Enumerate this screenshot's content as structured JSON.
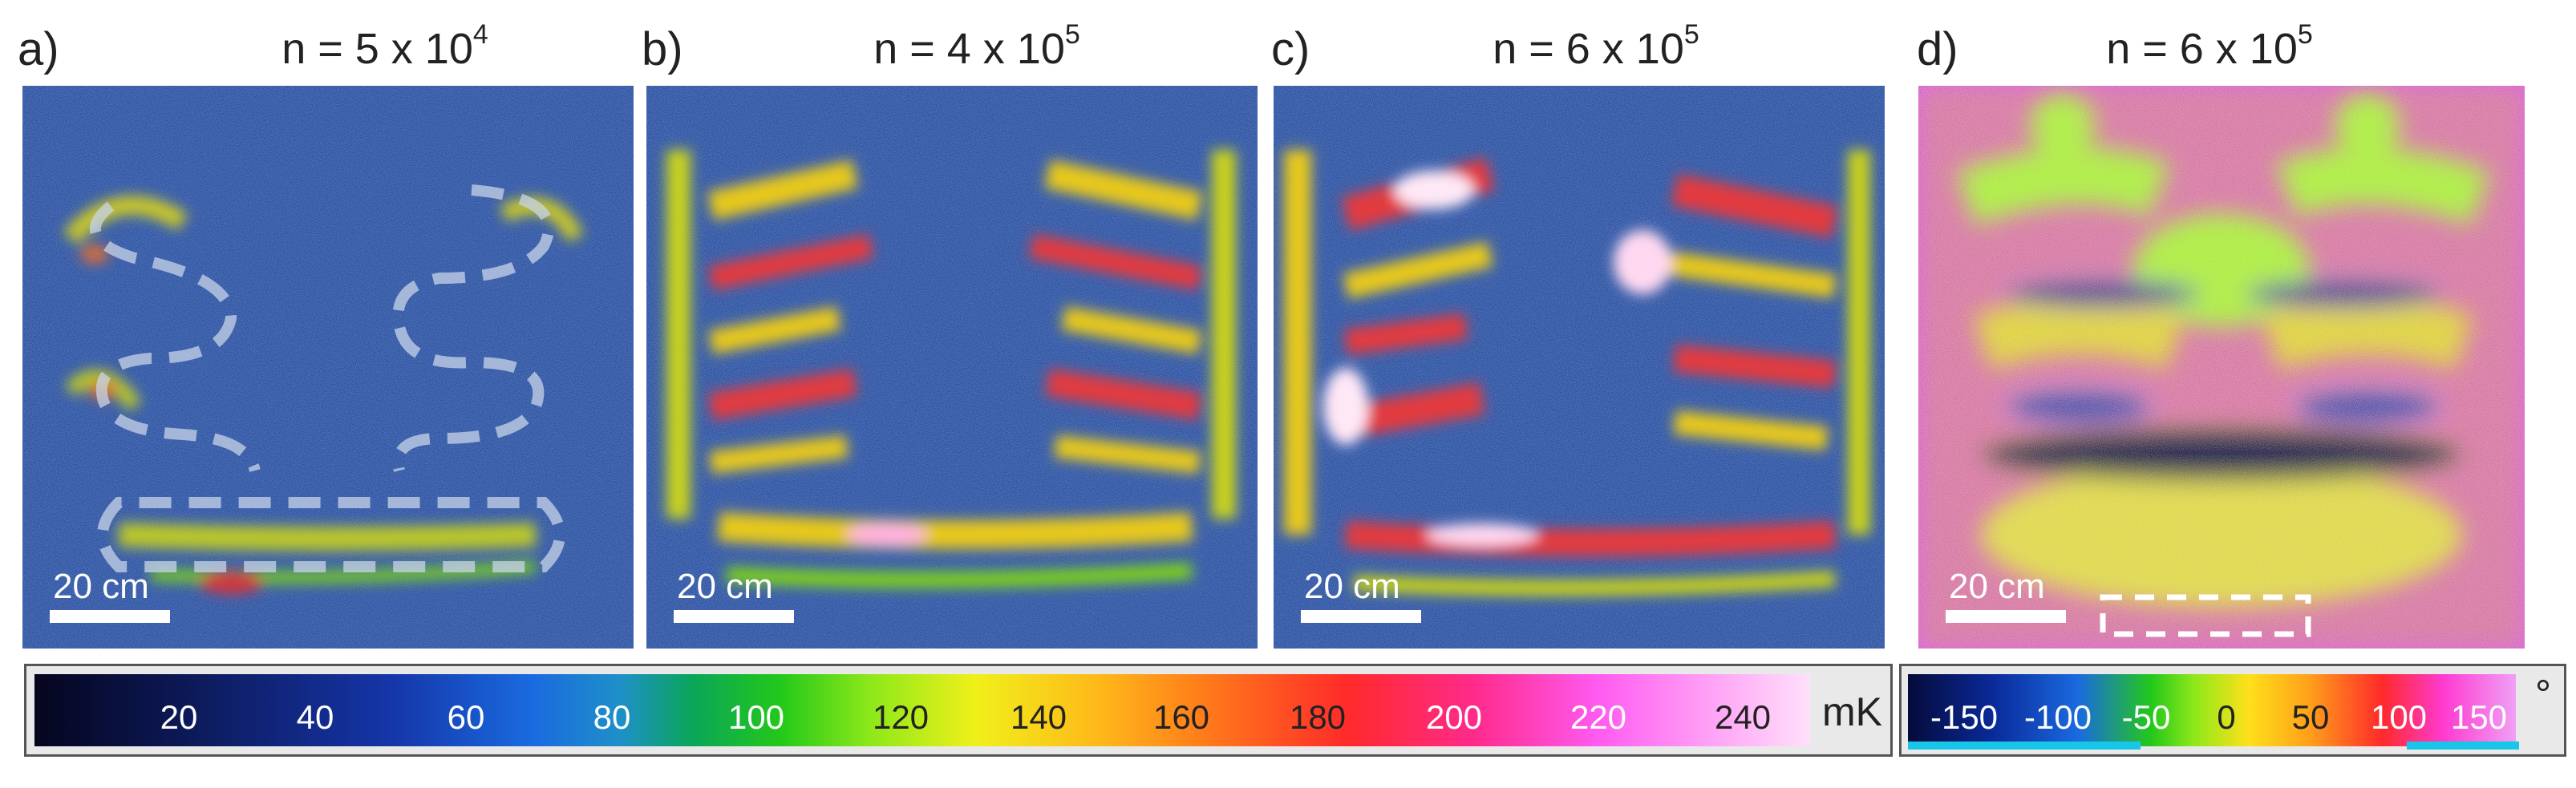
{
  "panels": [
    {
      "letter": "a)",
      "title_base": "n = 5 x 10",
      "title_exp": "4",
      "scale_label": "20 cm"
    },
    {
      "letter": "b)",
      "title_base": "n = 4 x 10",
      "title_exp": "5",
      "scale_label": "20 cm"
    },
    {
      "letter": "c)",
      "title_base": "n = 6 x 10",
      "title_exp": "5",
      "scale_label": "20 cm"
    },
    {
      "letter": "d)",
      "title_base": "n = 6 x 10",
      "title_exp": "5",
      "scale_label": "20 cm"
    }
  ],
  "colorbar_temp": {
    "ticks": [
      "20",
      "40",
      "60",
      "80",
      "100",
      "120",
      "140",
      "160",
      "180",
      "200",
      "220",
      "240"
    ],
    "unit": "mK"
  },
  "colorbar_phase": {
    "ticks": [
      "-150",
      "-100",
      "-50",
      "0",
      "50",
      "100",
      "150"
    ],
    "unit": "°"
  },
  "colors": {
    "background_blue": "#1a3a8c",
    "phase_magenta": "#d23fd2",
    "phase_green": "#8ce81a",
    "accent_cyan": "#18c6e8"
  }
}
